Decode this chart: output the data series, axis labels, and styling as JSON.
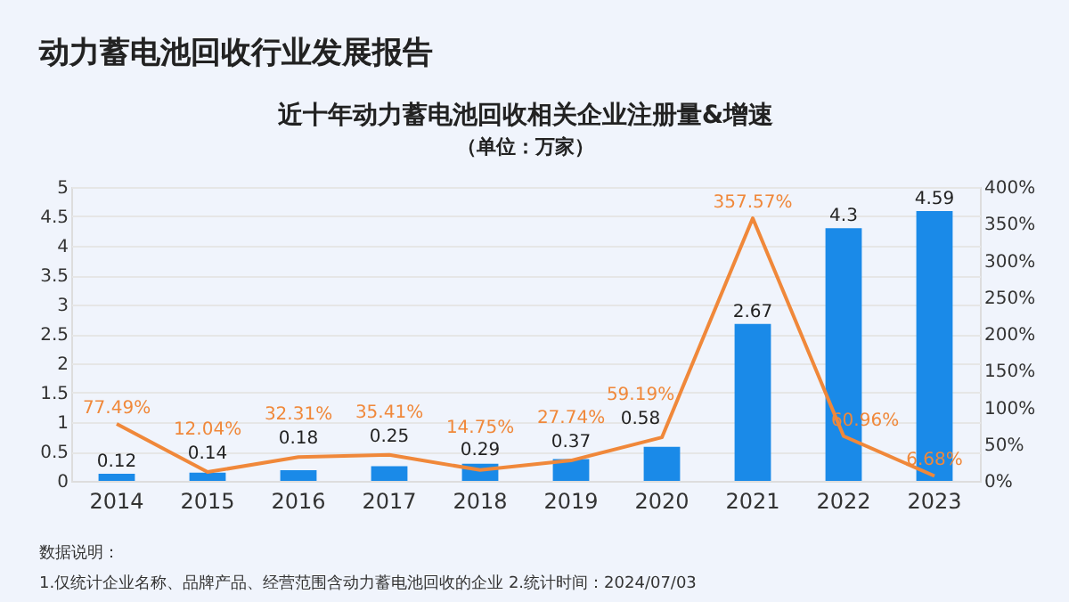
{
  "chart_data": {
    "type": "bar",
    "title": "动力蓄电池回收行业发展报告",
    "subtitle": "近十年动力蓄电池回收相关企业注册量&增速",
    "annotations": [
      "（单位：万家）",
      "数据说明：",
      "1.仅统计企业名称、品牌产品、经营范围含动力蓄电池回收的企业   2.统计时间：2024/07/03"
    ],
    "categories": [
      "2014",
      "2015",
      "2016",
      "2017",
      "2018",
      "2019",
      "2020",
      "2021",
      "2022",
      "2023"
    ],
    "series": [
      {
        "color": "#1a8ae8",
        "values": [
          0.12,
          0.14,
          0.18,
          0.25,
          0.29,
          0.37,
          0.58,
          2.67,
          4.3,
          4.59
        ]
      },
      {
        "type": "line",
        "axis": "y2",
        "color": "#f0883a",
        "values": [
          77.49,
          12.04,
          32.31,
          35.41,
          14.75,
          27.74,
          59.19,
          357.57,
          60.96,
          6.68
        ],
        "value_labels": [
          "77.49%",
          "12.04%",
          "32.31%",
          "35.41%",
          "14.75%",
          "27.74%",
          "59.19%",
          "357.57%",
          "60.96%",
          "6.68%"
        ]
      }
    ],
    "data_labels": true,
    "ylim": [
      0,
      5
    ],
    "yticks": [
      0,
      0.5,
      1,
      1.5,
      2,
      2.5,
      3,
      3.5,
      4,
      4.5,
      5
    ],
    "y2lim": [
      0,
      400
    ],
    "y2ticks": [
      {
        "value": 0,
        "label": "0%"
      },
      {
        "value": 50,
        "label": "50%"
      },
      {
        "value": 100,
        "label": "100%"
      },
      {
        "value": 150,
        "label": "150%"
      },
      {
        "value": 200,
        "label": "200%"
      },
      {
        "value": 250,
        "label": "250%"
      },
      {
        "value": 300,
        "label": "300%"
      },
      {
        "value": 350,
        "label": "350%"
      },
      {
        "value": 400,
        "label": "400%"
      }
    ],
    "grid": "y"
  }
}
